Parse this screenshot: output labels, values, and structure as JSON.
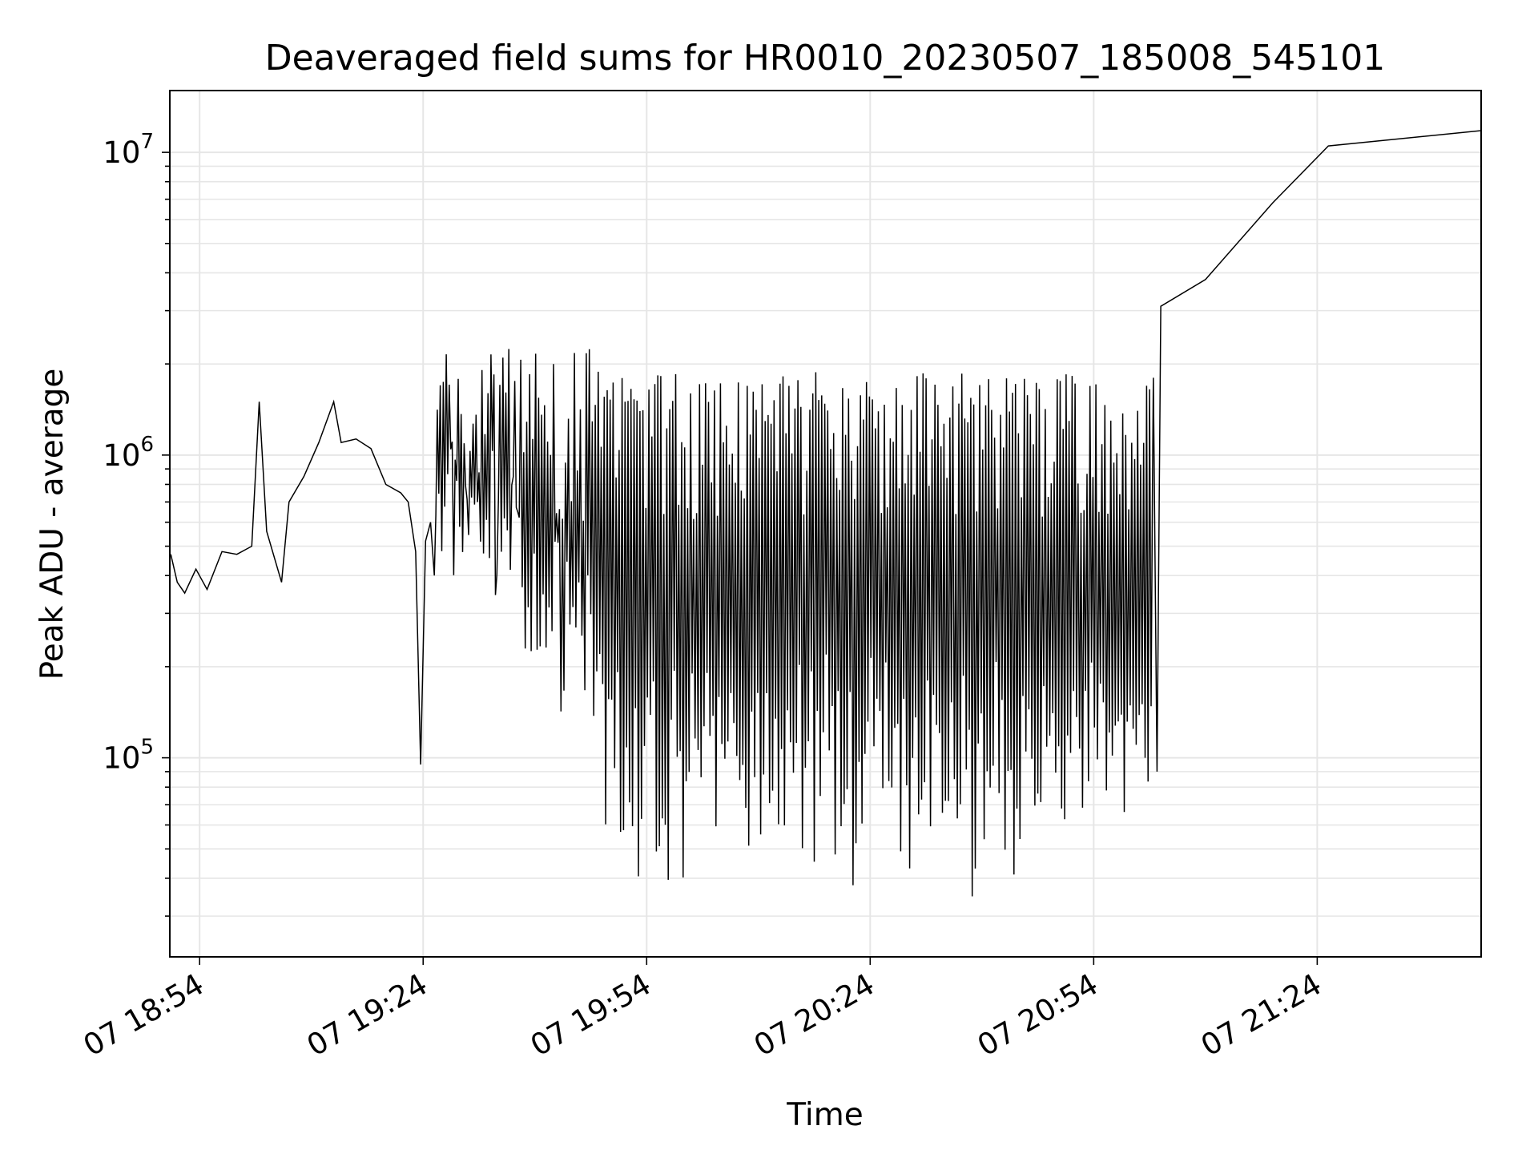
{
  "chart_data": {
    "type": "line",
    "title": "Deaveraged field sums for HR0010_20230507_185008_545101",
    "xlabel": "Time",
    "ylabel": "Peak ADU - average",
    "yscale": "log",
    "ylim": [
      22000,
      16000000
    ],
    "xlim": [
      "2023-05-07 18:50",
      "2023-05-07 21:46"
    ],
    "x_ticks": [
      "07 18:54",
      "07 19:24",
      "07 19:54",
      "07 20:24",
      "07 20:54",
      "07 21:24"
    ],
    "y_ticks": [
      {
        "base": "10",
        "exp": "5",
        "value": 100000
      },
      {
        "base": "10",
        "exp": "6",
        "value": 1000000
      },
      {
        "base": "10",
        "exp": "7",
        "value": 10000000
      }
    ],
    "grid": true,
    "line_color": "#000000",
    "grid_color": "#e6e6e6",
    "series": [
      {
        "x_start": "2023-05-07 18:50:08",
        "x_end_dense": "2023-05-07 21:03:00",
        "early_points": [
          [
            "2023-05-07 18:50:08",
            470000
          ],
          [
            "2023-05-07 18:51:00",
            380000
          ],
          [
            "2023-05-07 18:52:00",
            350000
          ],
          [
            "2023-05-07 18:53:30",
            420000
          ],
          [
            "2023-05-07 18:55:00",
            360000
          ],
          [
            "2023-05-07 18:57:00",
            480000
          ],
          [
            "2023-05-07 18:59:00",
            470000
          ],
          [
            "2023-05-07 19:01:00",
            500000
          ],
          [
            "2023-05-07 19:02:00",
            1500000
          ],
          [
            "2023-05-07 19:03:00",
            560000
          ],
          [
            "2023-05-07 19:05:00",
            380000
          ],
          [
            "2023-05-07 19:06:00",
            700000
          ],
          [
            "2023-05-07 19:08:00",
            850000
          ],
          [
            "2023-05-07 19:10:00",
            1100000
          ],
          [
            "2023-05-07 19:12:00",
            1500000
          ],
          [
            "2023-05-07 19:13:00",
            1100000
          ],
          [
            "2023-05-07 19:15:00",
            1130000
          ],
          [
            "2023-05-07 19:17:00",
            1050000
          ],
          [
            "2023-05-07 19:19:00",
            800000
          ],
          [
            "2023-05-07 19:21:00",
            750000
          ],
          [
            "2023-05-07 19:22:00",
            700000
          ],
          [
            "2023-05-07 19:23:00",
            480000
          ],
          [
            "2023-05-07 19:23:40",
            95000
          ],
          [
            "2023-05-07 19:24:20",
            520000
          ],
          [
            "2023-05-07 19:25:00",
            600000
          ]
        ],
        "final_points": [
          [
            "2023-05-07 21:03:00",
            3100000
          ],
          [
            "2023-05-07 21:09:00",
            3800000
          ],
          [
            "2023-05-07 21:18:00",
            6800000
          ],
          [
            "2023-05-07 21:25:30",
            10500000
          ],
          [
            "2023-05-07 21:46:00",
            11800000
          ]
        ]
      }
    ]
  }
}
